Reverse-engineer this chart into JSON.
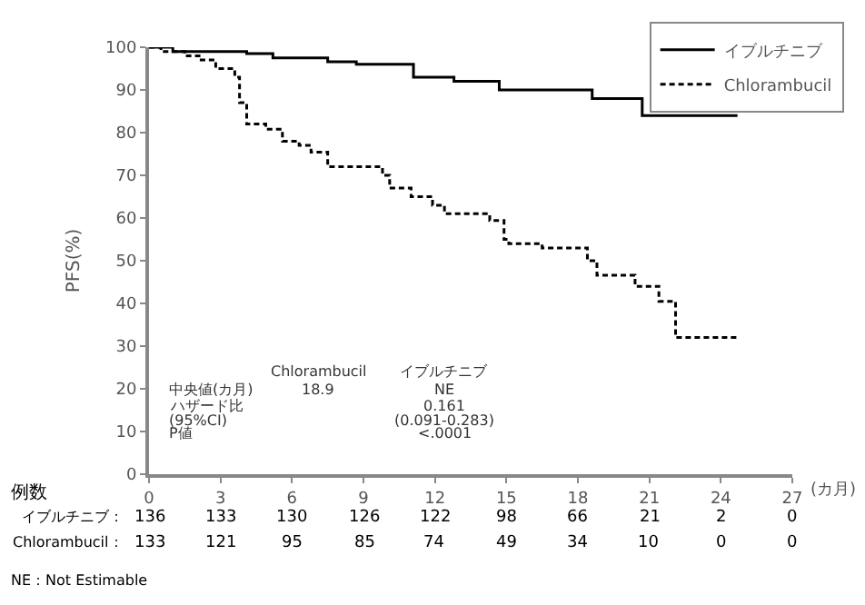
{
  "chart_data": {
    "type": "step",
    "ylabel": "PFS(%)",
    "xlabel": "(カ月)",
    "xlim": [
      0,
      27
    ],
    "xticks": [
      0,
      3,
      6,
      9,
      12,
      15,
      18,
      21,
      24,
      27
    ],
    "ylim": [
      0,
      100
    ],
    "yticks": [
      0,
      10,
      20,
      30,
      40,
      50,
      60,
      70,
      80,
      90,
      100
    ],
    "grid": false,
    "legend": "top right",
    "series": [
      {
        "name": "イブルチニブ",
        "color": "#000000",
        "line_style": "solid",
        "x": [
          0,
          1,
          4.1,
          5.2,
          7.5,
          8.7,
          11.1,
          12.8,
          14.7,
          18.6,
          20.7,
          24.7
        ],
        "values": [
          100,
          99,
          98.5,
          97.5,
          96.6,
          96,
          93,
          92,
          90,
          88,
          84,
          84
        ]
      },
      {
        "name": "Chlorambucil",
        "color": "#000000",
        "line_style": "dashed",
        "x": [
          0,
          0.5,
          1.5,
          2.1,
          2.8,
          3.6,
          3.8,
          4.1,
          4.9,
          5.6,
          6.3,
          6.8,
          7.5,
          9.8,
          10.1,
          11,
          11.9,
          12.4,
          14.3,
          14.9,
          15.1,
          16.5,
          18.4,
          18.8,
          20.4,
          21.4,
          22.1,
          24.7
        ],
        "values": [
          100,
          99,
          98,
          97,
          95,
          93,
          87,
          82,
          80.8,
          78,
          77,
          75.4,
          72,
          70,
          67,
          65,
          63,
          61,
          59.4,
          55,
          54,
          53,
          50,
          46.6,
          44,
          40.5,
          32,
          32
        ]
      }
    ],
    "annotations": [
      "Chlorambucil",
      "イブルチニブ",
      "中央値(カ月)",
      "18.9",
      "NE",
      "ハザード比",
      "0.161",
      "(95%CI)",
      "(0.091-0.283)",
      "P値",
      "<.0001",
      "例数",
      "イブルチニブ：",
      "136",
      "133",
      "130",
      "126",
      "122",
      "98",
      "66",
      "21",
      "2",
      "0",
      "Chlorambucil：",
      "133",
      "121",
      "95",
      "85",
      "74",
      "49",
      "34",
      "10",
      "0",
      "0",
      "NE：Not Estimable"
    ]
  }
}
